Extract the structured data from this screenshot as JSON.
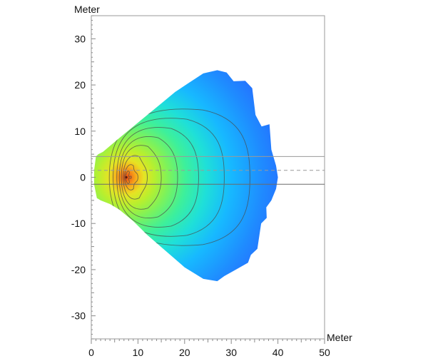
{
  "chart_data": {
    "type": "heatmap",
    "title": "",
    "xlabel": "Meter",
    "ylabel": "Meter",
    "xlim": [
      0,
      50
    ],
    "ylim": [
      -35,
      35
    ],
    "x_ticks": [
      0,
      10,
      20,
      30,
      40,
      50
    ],
    "y_ticks": [
      -30,
      -20,
      -10,
      0,
      10,
      20,
      30
    ],
    "grid": false,
    "legend": "none",
    "colormap": [
      "#2a5cff",
      "#1f8bff",
      "#17b9ff",
      "#1fe0d8",
      "#3ef09a",
      "#7ef25a",
      "#b9ef2e",
      "#e6e324",
      "#f7b21b",
      "#f47f16",
      "#e8470f"
    ],
    "contour_color": "#4a4a4a",
    "source": {
      "x": 7.5,
      "y": 0
    },
    "outline": [
      [
        0.6,
        1.5
      ],
      [
        1.0,
        4.5
      ],
      [
        1.5,
        5.0
      ],
      [
        2.5,
        5.5
      ],
      [
        4,
        6.8
      ],
      [
        6,
        8.5
      ],
      [
        9,
        11
      ],
      [
        12,
        13.5
      ],
      [
        15,
        16
      ],
      [
        18,
        18.5
      ],
      [
        21,
        20.5
      ],
      [
        24,
        22.5
      ],
      [
        27,
        23.2
      ],
      [
        29,
        22.7
      ],
      [
        30.5,
        20.8
      ],
      [
        33,
        20.9
      ],
      [
        34.5,
        19.3
      ],
      [
        35.2,
        13.5
      ],
      [
        36.5,
        11.0
      ],
      [
        38.2,
        11.5
      ],
      [
        38.6,
        6.0
      ],
      [
        39.6,
        2.5
      ],
      [
        40.0,
        0.0
      ],
      [
        39.6,
        -2.5
      ],
      [
        38.6,
        -5.0
      ],
      [
        37.5,
        -6.5
      ],
      [
        37.6,
        -8.8
      ],
      [
        36.4,
        -10.0
      ],
      [
        35.6,
        -15.5
      ],
      [
        34.2,
        -16.8
      ],
      [
        33.6,
        -18.5
      ],
      [
        31.0,
        -20.0
      ],
      [
        28.5,
        -21.4
      ],
      [
        27.0,
        -22.5
      ],
      [
        24,
        -22.0
      ],
      [
        20,
        -19.5
      ],
      [
        16,
        -16.0
      ],
      [
        12,
        -12.5
      ],
      [
        9,
        -9.5
      ],
      [
        6,
        -7.0
      ],
      [
        4,
        -5.8
      ],
      [
        2.0,
        -5.0
      ],
      [
        1.2,
        -4.5
      ],
      [
        0.6,
        -1.5
      ]
    ],
    "contours": [
      {
        "x": 34.0,
        "y": 15.5,
        "scale": 0.86
      },
      {
        "x": 28.5,
        "y": 13.5,
        "scale": 0.84
      },
      {
        "x": 23.0,
        "y": 11.5,
        "scale": 0.82
      },
      {
        "x": 18.5,
        "y": 9.5,
        "scale": 0.85
      },
      {
        "x": 15.0,
        "y": 7.6,
        "scale": 0.88
      },
      {
        "x": 12.0,
        "y": 5.4,
        "scale": 0.9
      },
      {
        "x": 10.0,
        "y": 3.4,
        "scale": 0.92
      },
      {
        "x": 8.6,
        "y": 2.0,
        "scale": 0.95
      }
    ],
    "reference_lines": [
      {
        "y": 4.5,
        "style": "solid",
        "color": "#9a9a9a"
      },
      {
        "y": 1.5,
        "style": "dashed",
        "color": "#9a9a9a"
      },
      {
        "y": -1.5,
        "style": "solid",
        "color": "#6a6a6a"
      }
    ]
  }
}
